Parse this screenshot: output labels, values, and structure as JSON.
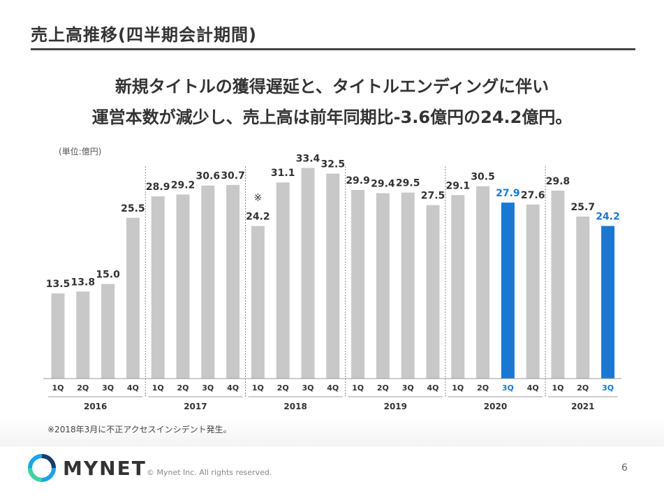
{
  "slide": {
    "title": "売上高推移(四半期会計期間)",
    "headline_line1": "新規タイトルの獲得遅延と、タイトルエンディングに伴い",
    "headline_line2": "運営本数が減少し、売上高は前年同期比-3.6億円の24.2億円。",
    "unit_label": "(単位:億円)",
    "footnote": "※2018年3月に不正アクセスインシデント発生。",
    "logo_text": "MYNET",
    "copyright": "© Mynet Inc. All rights reserved.",
    "page_number": "6"
  },
  "colors": {
    "bar_default": "#c8c8c8",
    "bar_highlight": "#1a78d2",
    "label_default": "#333333",
    "label_highlight": "#1a78d2",
    "logo_blue": "#1aa3e8",
    "logo_navy": "#1a3b6e"
  },
  "chart_data": {
    "type": "bar",
    "ylim": [
      0,
      35
    ],
    "grid": false,
    "x_groups": [
      {
        "year": "2016",
        "quarters": [
          "1Q",
          "2Q",
          "3Q",
          "4Q"
        ],
        "values": [
          13.5,
          13.8,
          15.0,
          25.5
        ],
        "highlight": [
          false,
          false,
          false,
          false
        ]
      },
      {
        "year": "2017",
        "quarters": [
          "1Q",
          "2Q",
          "3Q",
          "4Q"
        ],
        "values": [
          28.9,
          29.2,
          30.6,
          30.7
        ],
        "highlight": [
          false,
          false,
          false,
          false
        ]
      },
      {
        "year": "2018",
        "quarters": [
          "1Q",
          "2Q",
          "3Q",
          "4Q"
        ],
        "values": [
          24.2,
          31.1,
          33.4,
          32.5
        ],
        "highlight": [
          false,
          false,
          false,
          false
        ]
      },
      {
        "year": "2019",
        "quarters": [
          "1Q",
          "2Q",
          "3Q",
          "4Q"
        ],
        "values": [
          29.9,
          29.4,
          29.5,
          27.5
        ],
        "highlight": [
          false,
          false,
          false,
          false
        ]
      },
      {
        "year": "2020",
        "quarters": [
          "1Q",
          "2Q",
          "3Q",
          "4Q"
        ],
        "values": [
          29.1,
          30.5,
          27.9,
          27.6
        ],
        "highlight": [
          false,
          false,
          true,
          false
        ]
      },
      {
        "year": "2021",
        "quarters": [
          "1Q",
          "2Q",
          "3Q"
        ],
        "values": [
          29.8,
          25.7,
          24.2
        ],
        "highlight": [
          false,
          false,
          true
        ]
      }
    ],
    "annotations": [
      {
        "year": "2018",
        "quarter": "1Q",
        "text": "※"
      }
    ]
  }
}
